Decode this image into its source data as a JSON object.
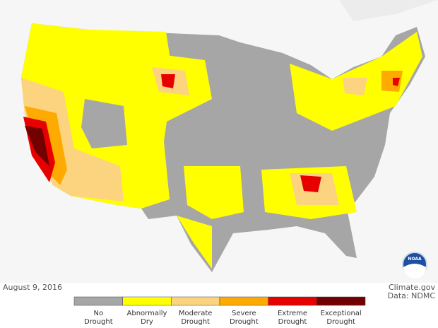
{
  "map": {
    "date": "August 9, 2016",
    "source": "Climate.gov",
    "data_credit": "Data: NDMC",
    "logo": "NOAA",
    "legend": [
      {
        "lines": [
          "No",
          "Drought"
        ],
        "color": "#a6a6a6"
      },
      {
        "lines": [
          "Abnormally",
          "Dry"
        ],
        "color": "#ffff00"
      },
      {
        "lines": [
          "Moderate",
          "Drought"
        ],
        "color": "#fcd37f"
      },
      {
        "lines": [
          "Severe",
          "Drought"
        ],
        "color": "#ffaa00"
      },
      {
        "lines": [
          "Extreme",
          "Drought"
        ],
        "color": "#e60000"
      },
      {
        "lines": [
          "Exceptional",
          "Drought"
        ],
        "color": "#730000"
      }
    ]
  }
}
